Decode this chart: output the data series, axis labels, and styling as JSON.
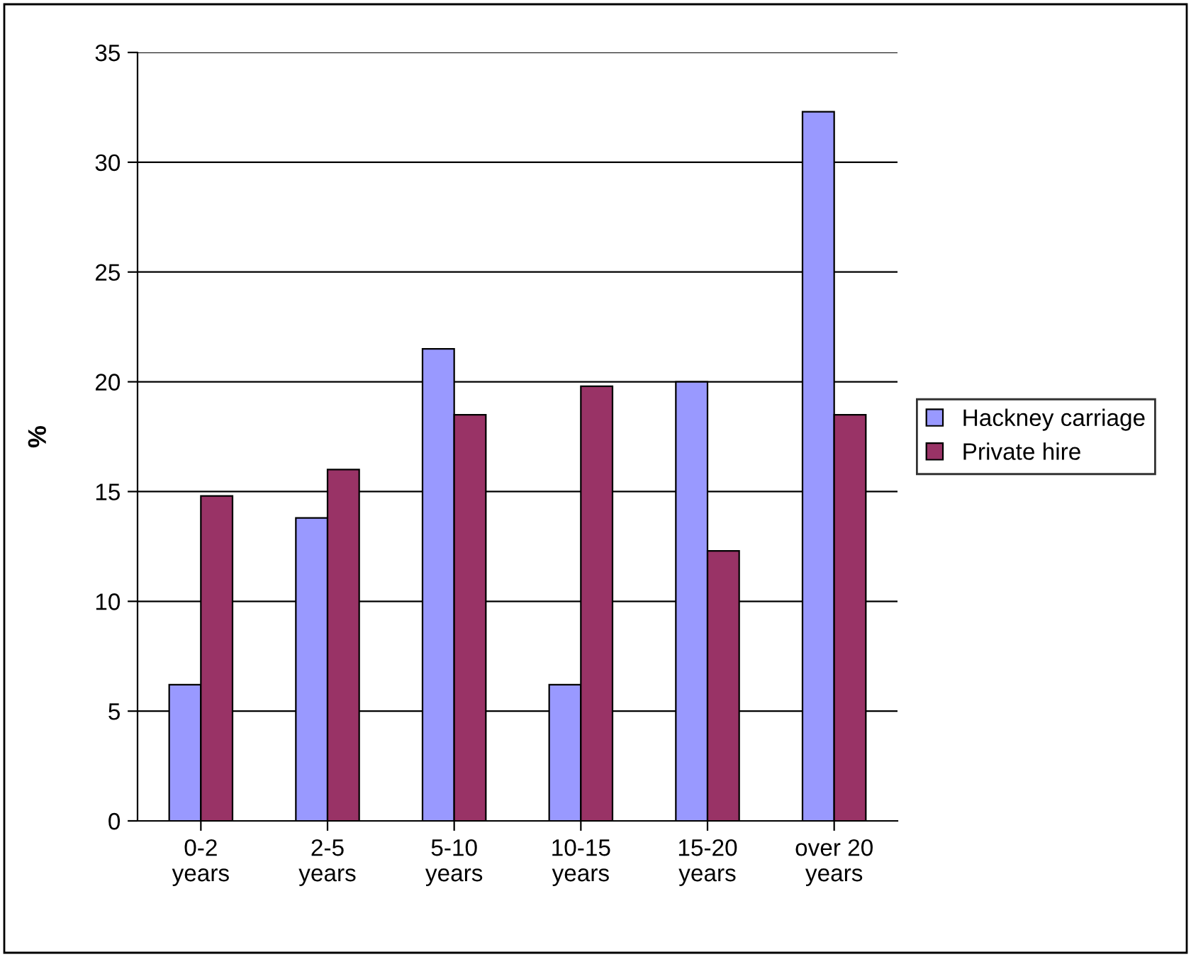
{
  "chart_data": {
    "type": "bar",
    "ylabel": "%",
    "categories": [
      "0-2\nyears",
      "2-5\nyears",
      "5-10\nyears",
      "10-15\nyears",
      "15-20\nyears",
      "over 20\nyears"
    ],
    "series": [
      {
        "name": "Hackney carriage",
        "color": "#9999ff",
        "values": [
          6.2,
          13.8,
          21.5,
          6.2,
          20.0,
          32.3
        ]
      },
      {
        "name": "Private hire",
        "color": "#993366",
        "values": [
          14.8,
          16.0,
          18.5,
          19.8,
          12.3,
          18.5
        ]
      }
    ],
    "ylim": [
      0,
      35
    ],
    "yticks": [
      0,
      5,
      10,
      15,
      20,
      25,
      30,
      35
    ],
    "grid": "y",
    "legend": "right"
  }
}
